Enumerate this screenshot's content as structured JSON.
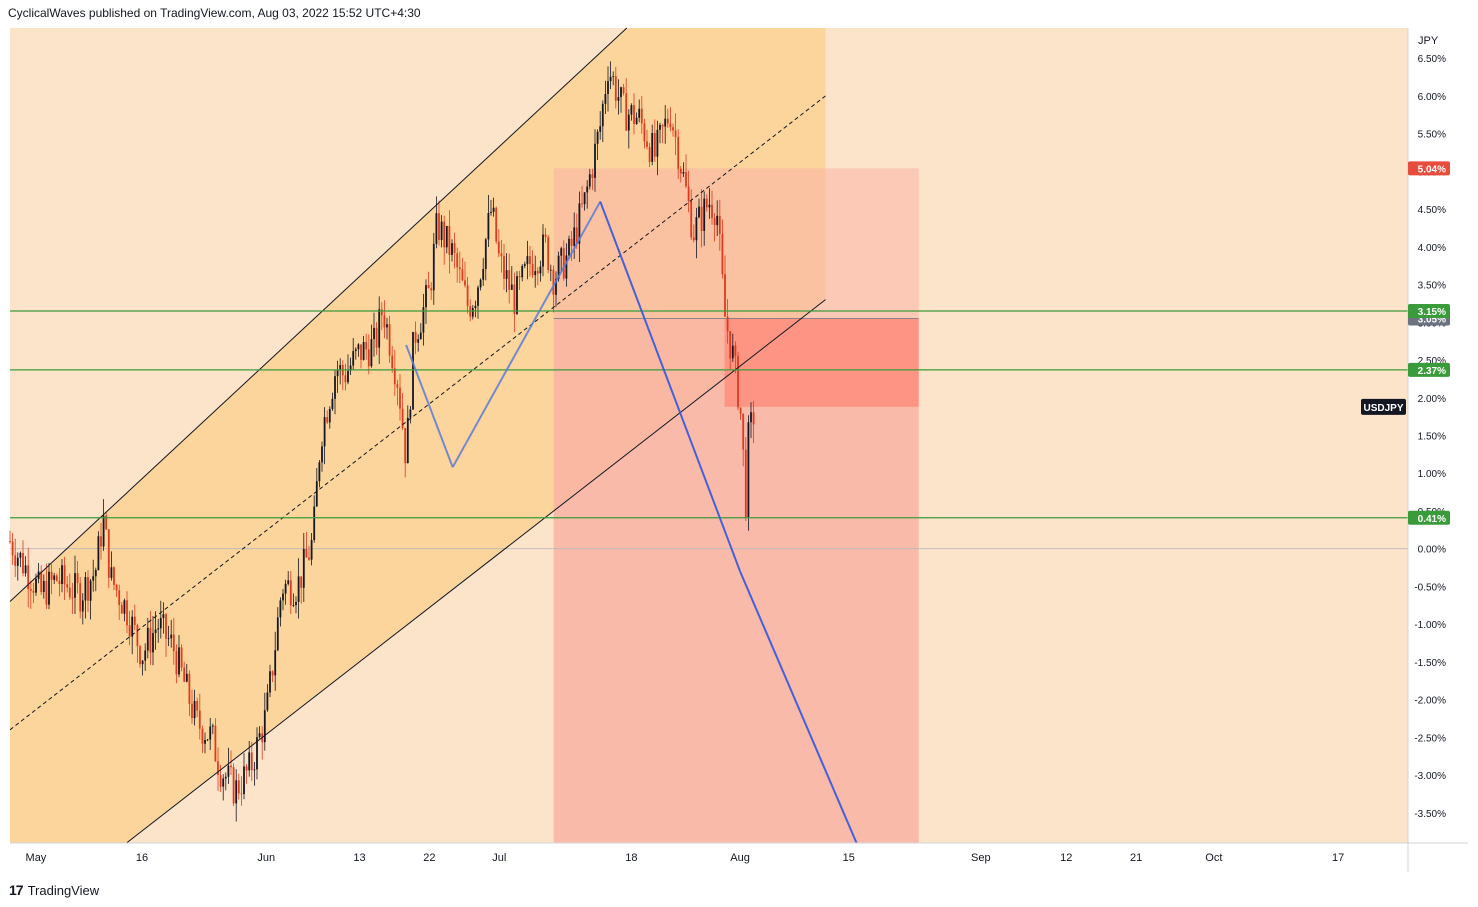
{
  "header": {
    "publisher_line": "CyclicalWaves published on TradingView.com, Aug 03, 2022 15:52 UTC+4:30"
  },
  "footer": {
    "brand": "TradingView"
  },
  "colors": {
    "background": "#fce4cb",
    "channel_fill": "#fbd59c",
    "target_zone": "#f9b3a4",
    "entry_zone": "#ff8c7a",
    "candle_up": "#131722",
    "candle_down": "#e03a1e",
    "level_line": "#3a9b3a",
    "wave_line": "#5b7bd6",
    "projection_line": "#3b5bdb"
  },
  "chart_data": {
    "type": "candlestick",
    "symbol": "USDJPY",
    "axis_unit": "JPY",
    "y_scale": "percent",
    "ylim": [
      -3.9,
      6.9
    ],
    "y_ticks": [
      "6.50%",
      "6.00%",
      "5.50%",
      "5.00%",
      "4.50%",
      "4.00%",
      "3.50%",
      "3.00%",
      "2.50%",
      "2.00%",
      "1.50%",
      "1.00%",
      "0.50%",
      "0.00%",
      "-0.50%",
      "-1.00%",
      "-1.50%",
      "-2.00%",
      "-2.50%",
      "-3.00%",
      "-3.50%"
    ],
    "x_ticks": [
      "May",
      "16",
      "Jun",
      "13",
      "22",
      "Jul",
      "18",
      "Aug",
      "15",
      "Sep",
      "12",
      "21",
      "Oct",
      "17"
    ],
    "x_tick_dates": [
      "2022-05-01",
      "2022-05-16",
      "2022-06-01",
      "2022-06-13",
      "2022-06-22",
      "2022-07-01",
      "2022-07-18",
      "2022-08-01",
      "2022-08-15",
      "2022-09-01",
      "2022-09-12",
      "2022-09-21",
      "2022-10-01",
      "2022-10-17"
    ],
    "x_range": [
      "2022-04-29",
      "2022-10-26"
    ],
    "series_path": [
      {
        "date": "2022-04-29",
        "value": 0.1
      },
      {
        "date": "2022-05-03",
        "value": -0.6
      },
      {
        "date": "2022-05-05",
        "value": -0.4
      },
      {
        "date": "2022-05-08",
        "value": -0.6
      },
      {
        "date": "2022-05-10",
        "value": -0.3
      },
      {
        "date": "2022-05-11",
        "value": 0.4
      },
      {
        "date": "2022-05-12",
        "value": -0.4
      },
      {
        "date": "2022-05-14",
        "value": -0.8
      },
      {
        "date": "2022-05-16",
        "value": -1.4
      },
      {
        "date": "2022-05-18",
        "value": -1.0
      },
      {
        "date": "2022-05-20",
        "value": -1.3
      },
      {
        "date": "2022-05-23",
        "value": -2.3
      },
      {
        "date": "2022-05-25",
        "value": -2.5
      },
      {
        "date": "2022-05-26",
        "value": -2.9
      },
      {
        "date": "2022-05-28",
        "value": -3.2
      },
      {
        "date": "2022-05-30",
        "value": -2.9
      },
      {
        "date": "2022-06-01",
        "value": -2.2
      },
      {
        "date": "2022-06-02",
        "value": -1.4
      },
      {
        "date": "2022-06-03",
        "value": -0.5
      },
      {
        "date": "2022-06-05",
        "value": -0.5
      },
      {
        "date": "2022-06-07",
        "value": 0.1
      },
      {
        "date": "2022-06-08",
        "value": 1.5
      },
      {
        "date": "2022-06-10",
        "value": 2.4
      },
      {
        "date": "2022-06-11",
        "value": 2.3
      },
      {
        "date": "2022-06-13",
        "value": 2.6
      },
      {
        "date": "2022-06-15",
        "value": 2.7
      },
      {
        "date": "2022-06-16",
        "value": 3.2
      },
      {
        "date": "2022-06-18",
        "value": 2.2
      },
      {
        "date": "2022-06-19",
        "value": 1.2
      },
      {
        "date": "2022-06-20",
        "value": 2.8
      },
      {
        "date": "2022-06-22",
        "value": 3.4
      },
      {
        "date": "2022-06-23",
        "value": 4.3
      },
      {
        "date": "2022-06-25",
        "value": 3.9
      },
      {
        "date": "2022-06-27",
        "value": 3.2
      },
      {
        "date": "2022-06-28",
        "value": 3.4
      },
      {
        "date": "2022-06-30",
        "value": 4.5
      },
      {
        "date": "2022-07-01",
        "value": 3.8
      },
      {
        "date": "2022-07-03",
        "value": 3.3
      },
      {
        "date": "2022-07-05",
        "value": 3.8
      },
      {
        "date": "2022-07-07",
        "value": 4.0
      },
      {
        "date": "2022-07-08",
        "value": 3.6
      },
      {
        "date": "2022-07-10",
        "value": 3.9
      },
      {
        "date": "2022-07-12",
        "value": 4.6
      },
      {
        "date": "2022-07-14",
        "value": 5.6
      },
      {
        "date": "2022-07-15",
        "value": 6.4
      },
      {
        "date": "2022-07-17",
        "value": 5.8
      },
      {
        "date": "2022-07-19",
        "value": 5.7
      },
      {
        "date": "2022-07-21",
        "value": 5.2
      },
      {
        "date": "2022-07-23",
        "value": 5.8
      },
      {
        "date": "2022-07-24",
        "value": 5.3
      },
      {
        "date": "2022-07-26",
        "value": 4.2
      },
      {
        "date": "2022-07-28",
        "value": 4.6
      },
      {
        "date": "2022-07-29",
        "value": 4.5
      },
      {
        "date": "2022-07-30",
        "value": 3.1
      },
      {
        "date": "2022-07-31",
        "value": 2.6
      },
      {
        "date": "2022-08-01",
        "value": 1.9
      },
      {
        "date": "2022-08-02",
        "value": 0.2
      },
      {
        "date": "2022-08-02",
        "value": 1.4
      },
      {
        "date": "2022-08-03",
        "value": 1.9
      }
    ],
    "levels": [
      {
        "value": 3.15,
        "label": "3.15%",
        "color": "#3a9b3a"
      },
      {
        "value": 2.37,
        "label": "2.37%",
        "color": "#3a9b3a"
      },
      {
        "value": 0.41,
        "label": "0.41%",
        "color": "#3a9b3a"
      }
    ],
    "price_tags": [
      {
        "value": 5.04,
        "label": "5.04%",
        "color": "#e74c3c"
      },
      {
        "value": 3.05,
        "label": "3.05%",
        "color": "#6b7280"
      }
    ],
    "symbol_tag": {
      "value": 1.88,
      "label": "USDJPY"
    },
    "channel": {
      "upper": [
        {
          "date": "2022-04-29",
          "value": -0.7
        },
        {
          "date": "2022-07-31",
          "value": 8.2
        }
      ],
      "middle": [
        {
          "date": "2022-04-29",
          "value": -2.4
        },
        {
          "date": "2022-08-12",
          "value": 6.0
        }
      ],
      "lower": [
        {
          "date": "2022-05-14",
          "value": -3.9
        },
        {
          "date": "2022-08-12",
          "value": 3.3
        }
      ],
      "shade_until": "2022-08-12"
    },
    "position": {
      "start": "2022-07-08",
      "end": "2022-08-24",
      "stop": 5.04,
      "entry": 3.05,
      "entry_zone_low": 1.88,
      "target": -3.9
    },
    "wave_path": [
      {
        "date": "2022-06-19",
        "value": 2.7
      },
      {
        "date": "2022-06-25",
        "value": 1.08
      },
      {
        "date": "2022-07-14",
        "value": 4.6
      },
      {
        "date": "2022-08-01",
        "value": -0.3
      },
      {
        "date": "2022-08-16",
        "value": -3.9
      }
    ]
  }
}
